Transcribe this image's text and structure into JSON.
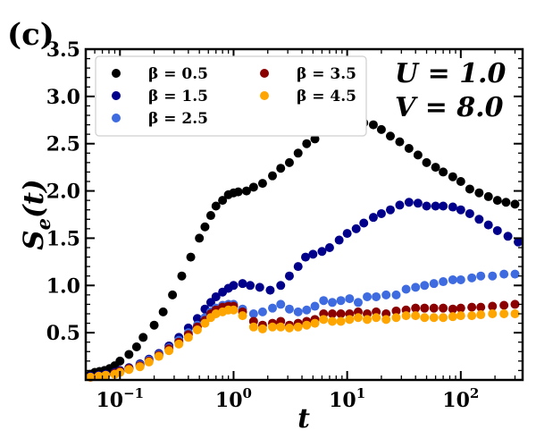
{
  "panel_label": "(c)",
  "params": {
    "line1": "U = 1.0",
    "line2": "V = 8.0"
  },
  "chart_data": {
    "type": "scatter",
    "title": "",
    "xlabel": "t",
    "ylabel": "S_e(t)",
    "xscale": "log",
    "xlim": [
      0.05,
      350
    ],
    "ylim": [
      0.0,
      3.5
    ],
    "x_ticks": [
      {
        "value": 0.1,
        "label": "10^-1"
      },
      {
        "value": 1,
        "label": "10^0"
      },
      {
        "value": 10,
        "label": "10^1"
      },
      {
        "value": 100,
        "label": "10^2"
      }
    ],
    "y_ticks": [
      {
        "value": 0.5,
        "label": "0.5"
      },
      {
        "value": 1.0,
        "label": "1.0"
      },
      {
        "value": 1.5,
        "label": "1.5"
      },
      {
        "value": 2.0,
        "label": "2.0"
      },
      {
        "value": 2.5,
        "label": "2.5"
      },
      {
        "value": 3.0,
        "label": "3.0"
      },
      {
        "value": 3.5,
        "label": "3.5"
      }
    ],
    "legend_position": "top-left",
    "series": [
      {
        "name": "β = 0.5",
        "color": "#000000",
        "x": [
          0.055,
          0.06,
          0.066,
          0.073,
          0.081,
          0.09,
          0.1,
          0.12,
          0.14,
          0.16,
          0.2,
          0.24,
          0.29,
          0.35,
          0.42,
          0.5,
          0.56,
          0.63,
          0.7,
          0.8,
          0.9,
          1.0,
          1.1,
          1.3,
          1.5,
          1.8,
          2.2,
          2.6,
          3.1,
          3.7,
          4.4,
          5.2,
          6.0,
          7.0,
          8.5,
          10,
          12,
          14,
          17,
          20,
          24,
          29,
          35,
          42,
          50,
          60,
          70,
          85,
          100,
          120,
          145,
          175,
          210,
          250,
          300
        ],
        "y": [
          0.06,
          0.08,
          0.09,
          0.1,
          0.12,
          0.15,
          0.2,
          0.27,
          0.35,
          0.45,
          0.58,
          0.72,
          0.9,
          1.1,
          1.3,
          1.5,
          1.62,
          1.74,
          1.84,
          1.9,
          1.96,
          1.98,
          1.99,
          2.0,
          2.04,
          2.08,
          2.16,
          2.24,
          2.3,
          2.4,
          2.5,
          2.55,
          2.64,
          2.7,
          2.75,
          2.76,
          2.75,
          2.72,
          2.7,
          2.65,
          2.58,
          2.52,
          2.45,
          2.38,
          2.3,
          2.25,
          2.2,
          2.15,
          2.1,
          2.02,
          1.98,
          1.94,
          1.9,
          1.88,
          1.86
        ]
      },
      {
        "name": "β = 1.5",
        "color": "#00008b",
        "x": [
          0.055,
          0.065,
          0.075,
          0.09,
          0.1,
          0.12,
          0.15,
          0.18,
          0.22,
          0.27,
          0.33,
          0.4,
          0.48,
          0.56,
          0.63,
          0.7,
          0.8,
          0.9,
          1.0,
          1.2,
          1.4,
          1.7,
          2.1,
          2.6,
          3.1,
          3.7,
          4.3,
          5.0,
          6.0,
          7.0,
          8.5,
          10,
          12,
          14,
          17,
          20,
          24,
          29,
          35,
          42,
          50,
          60,
          70,
          85,
          100,
          120,
          145,
          175,
          210,
          260,
          320
        ],
        "y": [
          0.04,
          0.05,
          0.06,
          0.08,
          0.1,
          0.13,
          0.17,
          0.22,
          0.28,
          0.36,
          0.45,
          0.55,
          0.65,
          0.75,
          0.82,
          0.88,
          0.93,
          0.97,
          1.0,
          1.02,
          1.0,
          0.98,
          0.95,
          1.0,
          1.1,
          1.2,
          1.3,
          1.33,
          1.36,
          1.4,
          1.48,
          1.55,
          1.6,
          1.66,
          1.72,
          1.76,
          1.8,
          1.85,
          1.88,
          1.87,
          1.84,
          1.84,
          1.84,
          1.83,
          1.8,
          1.76,
          1.7,
          1.64,
          1.58,
          1.52,
          1.46
        ]
      },
      {
        "name": "β = 2.5",
        "color": "#3f6be0",
        "x": [
          0.055,
          0.065,
          0.075,
          0.09,
          0.1,
          0.12,
          0.15,
          0.18,
          0.22,
          0.27,
          0.33,
          0.4,
          0.48,
          0.56,
          0.63,
          0.7,
          0.8,
          0.9,
          1.0,
          1.2,
          1.5,
          1.8,
          2.2,
          2.6,
          3.1,
          3.7,
          4.4,
          5.2,
          6.2,
          7.4,
          8.8,
          10.5,
          12.5,
          15,
          18,
          22,
          27,
          33,
          40,
          48,
          58,
          70,
          85,
          100,
          125,
          150,
          190,
          240,
          300
        ],
        "y": [
          0.03,
          0.04,
          0.05,
          0.07,
          0.09,
          0.12,
          0.16,
          0.21,
          0.27,
          0.34,
          0.42,
          0.5,
          0.58,
          0.66,
          0.72,
          0.76,
          0.79,
          0.8,
          0.8,
          0.75,
          0.7,
          0.72,
          0.76,
          0.8,
          0.75,
          0.72,
          0.74,
          0.78,
          0.84,
          0.82,
          0.84,
          0.86,
          0.82,
          0.88,
          0.88,
          0.9,
          0.9,
          0.96,
          0.98,
          1.0,
          1.02,
          1.04,
          1.06,
          1.06,
          1.08,
          1.1,
          1.1,
          1.12,
          1.12
        ]
      },
      {
        "name": "β = 3.5",
        "color": "#8b0000",
        "x": [
          0.055,
          0.065,
          0.075,
          0.09,
          0.1,
          0.12,
          0.15,
          0.18,
          0.22,
          0.27,
          0.33,
          0.4,
          0.48,
          0.56,
          0.63,
          0.7,
          0.8,
          0.9,
          1.0,
          1.2,
          1.5,
          1.8,
          2.2,
          2.6,
          3.1,
          3.7,
          4.4,
          5.2,
          6.2,
          7.4,
          8.8,
          10.5,
          12.5,
          15,
          18,
          22,
          27,
          33,
          40,
          48,
          58,
          70,
          85,
          100,
          125,
          150,
          190,
          240,
          300
        ],
        "y": [
          0.03,
          0.04,
          0.05,
          0.07,
          0.09,
          0.12,
          0.15,
          0.2,
          0.26,
          0.33,
          0.4,
          0.48,
          0.56,
          0.63,
          0.7,
          0.74,
          0.77,
          0.78,
          0.78,
          0.72,
          0.62,
          0.58,
          0.6,
          0.62,
          0.58,
          0.6,
          0.62,
          0.64,
          0.7,
          0.7,
          0.7,
          0.7,
          0.72,
          0.7,
          0.72,
          0.7,
          0.73,
          0.74,
          0.76,
          0.76,
          0.76,
          0.76,
          0.75,
          0.76,
          0.77,
          0.77,
          0.78,
          0.79,
          0.8
        ]
      },
      {
        "name": "β = 4.5",
        "color": "#ffa500",
        "x": [
          0.055,
          0.065,
          0.075,
          0.09,
          0.1,
          0.12,
          0.15,
          0.18,
          0.22,
          0.27,
          0.33,
          0.4,
          0.48,
          0.56,
          0.63,
          0.7,
          0.8,
          0.9,
          1.0,
          1.2,
          1.5,
          1.8,
          2.2,
          2.6,
          3.1,
          3.7,
          4.4,
          5.2,
          6.2,
          7.4,
          8.8,
          10.5,
          12.5,
          15,
          18,
          22,
          27,
          33,
          40,
          48,
          58,
          70,
          85,
          100,
          125,
          150,
          190,
          240,
          300
        ],
        "y": [
          0.03,
          0.04,
          0.05,
          0.06,
          0.08,
          0.11,
          0.14,
          0.19,
          0.25,
          0.31,
          0.38,
          0.45,
          0.53,
          0.6,
          0.66,
          0.7,
          0.72,
          0.74,
          0.74,
          0.68,
          0.56,
          0.54,
          0.56,
          0.56,
          0.55,
          0.56,
          0.58,
          0.6,
          0.64,
          0.62,
          0.62,
          0.64,
          0.66,
          0.64,
          0.66,
          0.64,
          0.66,
          0.68,
          0.68,
          0.66,
          0.66,
          0.66,
          0.67,
          0.68,
          0.68,
          0.69,
          0.7,
          0.7,
          0.7
        ]
      }
    ]
  }
}
